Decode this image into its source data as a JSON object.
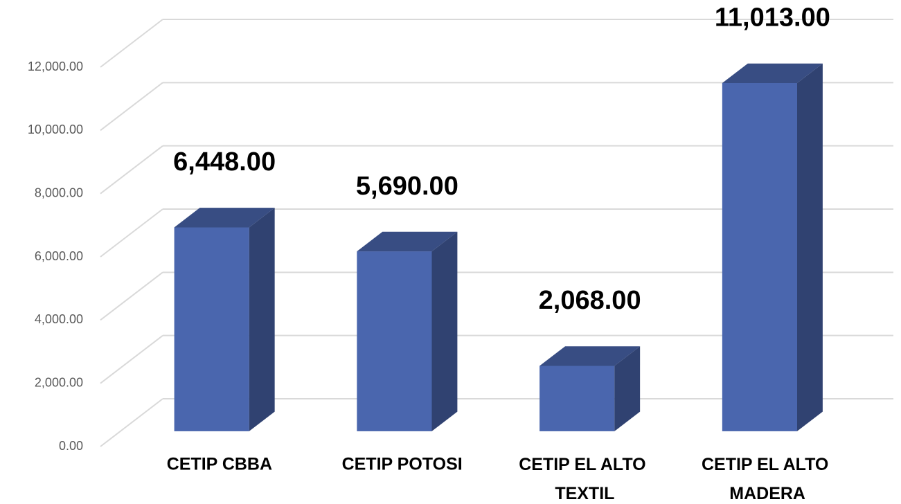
{
  "chart_data": {
    "type": "bar3d",
    "categories": [
      "CETIP CBBA",
      "CETIP POTOSI",
      "CETIP EL ALTO TEXTIL",
      "CETIP EL ALTO MADERA"
    ],
    "values": [
      6448,
      5690,
      2068,
      11013
    ],
    "value_labels": [
      "6,448.00",
      "5,690.00",
      "2,068.00",
      "11,013.00"
    ],
    "color": "#4a66ae",
    "ylim": [
      0,
      12000
    ],
    "yticks": [
      {
        "value": 0,
        "label": "0.00"
      },
      {
        "value": 2000,
        "label": "2,000.00"
      },
      {
        "value": 4000,
        "label": "4,000.00"
      },
      {
        "value": 6000,
        "label": "6,000.00"
      },
      {
        "value": 8000,
        "label": "8,000.00"
      },
      {
        "value": 10000,
        "label": "10,000.00"
      },
      {
        "value": 12000,
        "label": "12,000.00"
      }
    ],
    "grid": true
  }
}
